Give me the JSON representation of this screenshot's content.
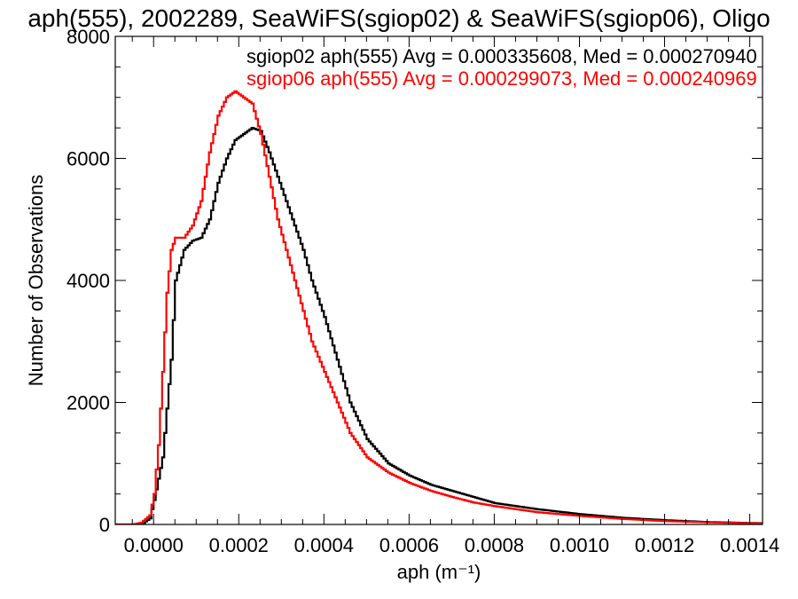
{
  "chart_data": {
    "type": "line",
    "title": "aph(555), 2002289, SeaWiFS(sgiop02) & SeaWiFS(sgiop06), Oligo",
    "xlabel": "aph (m⁻¹)",
    "ylabel": "Number of Observations",
    "xlim": [
      -9e-05,
      0.00143
    ],
    "ylim": [
      0,
      8000
    ],
    "x_tick_labels": [
      "0.0000",
      "0.0002",
      "0.0004",
      "0.0006",
      "0.0008",
      "0.0010",
      "0.0012",
      "0.0014"
    ],
    "y_tick_labels": [
      "0",
      "2000",
      "4000",
      "6000",
      "8000"
    ],
    "legend_position": "top-right",
    "series": [
      {
        "name": "sgiop02 aph(555) Avg = 0.000335608, Med = 0.000270940",
        "color": "#000000",
        "x": [
          -9e-05,
          -3e-05,
          -1e-05,
          0.0,
          2e-05,
          4e-05,
          5e-05,
          7e-05,
          9e-05,
          0.00011,
          0.00013,
          0.00015,
          0.00017,
          0.00019,
          0.00021,
          0.00023,
          0.00025,
          0.00027,
          0.00029,
          0.00031,
          0.00033,
          0.00035,
          0.00037,
          0.0004,
          0.00043,
          0.00046,
          0.0005,
          0.00055,
          0.0006,
          0.00065,
          0.0007,
          0.00075,
          0.0008,
          0.0009,
          0.001,
          0.0011,
          0.0012,
          0.0013,
          0.00143
        ],
        "y": [
          0,
          0,
          100,
          400,
          1100,
          2700,
          4000,
          4500,
          4650,
          4700,
          5000,
          5600,
          6000,
          6300,
          6400,
          6500,
          6450,
          6100,
          5700,
          5300,
          4900,
          4500,
          4000,
          3400,
          2700,
          2000,
          1400,
          1000,
          800,
          650,
          550,
          450,
          350,
          250,
          170,
          110,
          70,
          40,
          20
        ]
      },
      {
        "name": "sgiop06 aph(555) Avg = 0.000299073, Med = 0.000240969",
        "color": "#ff0000",
        "x": [
          -9e-05,
          -5e-05,
          -3e-05,
          -1e-05,
          0.0,
          1e-05,
          2e-05,
          3e-05,
          4e-05,
          5e-05,
          7e-05,
          9e-05,
          0.00011,
          0.00013,
          0.00015,
          0.00017,
          0.00019,
          0.00021,
          0.00023,
          0.00025,
          0.00027,
          0.00029,
          0.00031,
          0.00033,
          0.00035,
          0.00037,
          0.0004,
          0.00043,
          0.00046,
          0.0005,
          0.00055,
          0.0006,
          0.00065,
          0.0007,
          0.00075,
          0.0008,
          0.0009,
          0.001,
          0.0011,
          0.0012,
          0.0013,
          0.00143
        ],
        "y": [
          0,
          0,
          30,
          150,
          500,
          1300,
          2500,
          3800,
          4500,
          4700,
          4700,
          4900,
          5300,
          6100,
          6700,
          7000,
          7100,
          7000,
          6900,
          6400,
          5700,
          5000,
          4500,
          4000,
          3500,
          3000,
          2500,
          2000,
          1500,
          1100,
          850,
          680,
          550,
          450,
          360,
          300,
          200,
          140,
          90,
          55,
          35,
          15
        ]
      }
    ]
  }
}
